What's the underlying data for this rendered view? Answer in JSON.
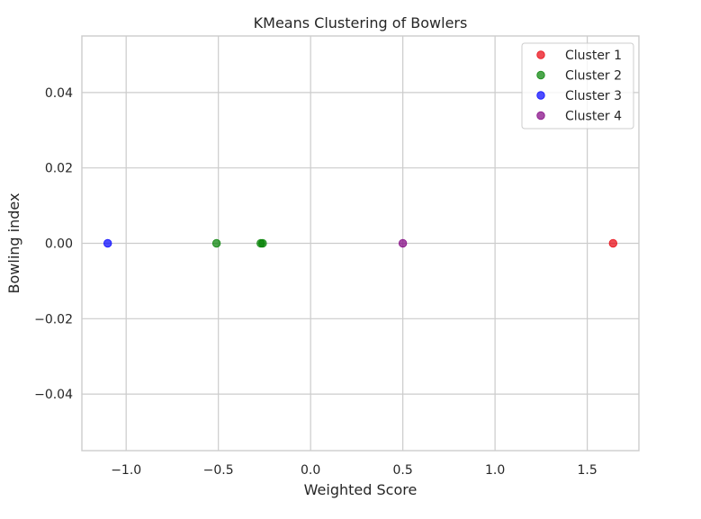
{
  "chart_data": {
    "type": "scatter",
    "title": "KMeans Clustering of Bowlers",
    "xlabel": "Weighted Score",
    "ylabel": "Bowling index",
    "xlim": [
      -1.24,
      1.78
    ],
    "ylim": [
      -0.055,
      0.055
    ],
    "x_ticks": [
      -1.0,
      -0.5,
      0.0,
      0.5,
      1.0,
      1.5
    ],
    "x_tick_labels": [
      "−1.0",
      "−0.5",
      "0.0",
      "0.5",
      "1.0",
      "1.5"
    ],
    "y_ticks": [
      0.04,
      0.02,
      0.0,
      -0.02,
      -0.04
    ],
    "y_tick_labels": [
      "0.04",
      "0.02",
      "0.00",
      "−0.02",
      "−0.04"
    ],
    "grid": true,
    "legend_position": "top-right",
    "series": [
      {
        "name": "Cluster 1",
        "color": "#e8000b",
        "points": [
          [
            1.64,
            0.0
          ]
        ]
      },
      {
        "name": "Cluster 2",
        "color": "#008000",
        "points": [
          [
            -0.51,
            0.0
          ],
          [
            -0.27,
            0.0
          ],
          [
            -0.26,
            0.0
          ]
        ]
      },
      {
        "name": "Cluster 3",
        "color": "#0000ff",
        "points": [
          [
            -1.1,
            0.0
          ]
        ]
      },
      {
        "name": "Cluster 4",
        "color": "#800080",
        "points": [
          [
            0.5,
            0.0
          ]
        ]
      }
    ]
  }
}
